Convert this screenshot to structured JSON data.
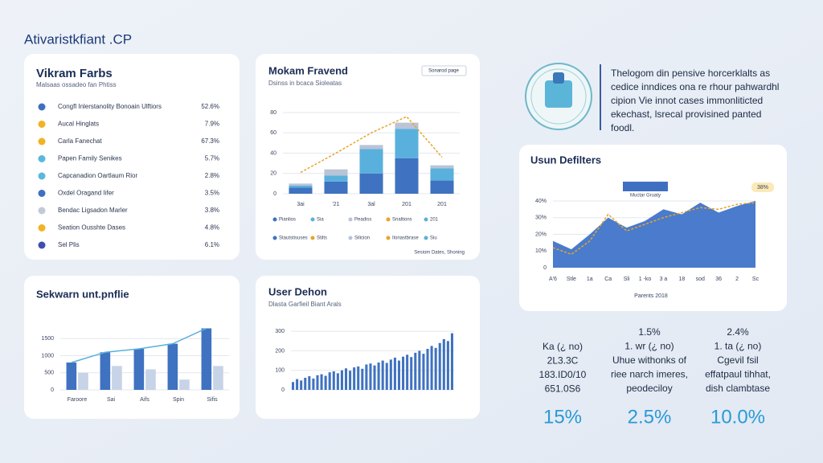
{
  "page_title": "Ativaristkfiant .CP",
  "list_panel": {
    "title": "Vikram Farbs",
    "subtitle": "Malsaas ossadeo fan Phtiss",
    "rows": [
      {
        "label": "Congfl Inlerstanolity Bonoain Ulftiors",
        "value": "52.6%",
        "color": "#3f6fc0"
      },
      {
        "label": "Aucal Hinglats",
        "value": "7.9%",
        "color": "#f0b323"
      },
      {
        "label": "Carla Fanechat",
        "value": "67.3%",
        "color": "#f0b323"
      },
      {
        "label": "Papen Family Senikes",
        "value": "5.7%",
        "color": "#5ab8dc"
      },
      {
        "label": "Capcanadion Oartlaum Rior",
        "value": "2.8%",
        "color": "#5ab8dc"
      },
      {
        "label": "Oxdel Oragand Iifer",
        "value": "3.5%",
        "color": "#3f6fc0"
      },
      {
        "label": "Bendac Ligsadon Marler",
        "value": "3.8%",
        "color": "#c2cad8"
      },
      {
        "label": "Seation Ousshte Dases",
        "value": "4.8%",
        "color": "#f0b323"
      },
      {
        "label": "Sel Plis",
        "value": "6.1%",
        "color": "#3f4fb0"
      }
    ]
  },
  "chart_data": [
    {
      "type": "stacked_bar_line",
      "title": "Mokam Fravend",
      "subtitle": "Dsinss in bcaca Sioleatas",
      "button": "Sonarod paqe",
      "categories": [
        "3ai",
        "'21",
        "3al",
        "201",
        "201"
      ],
      "ylim": [
        0,
        80
      ],
      "yticks": [
        0,
        20,
        40,
        60,
        80
      ],
      "series": [
        {
          "name": "Pianlios",
          "color": "#3f72c0",
          "values": [
            6,
            12,
            20,
            35,
            13
          ]
        },
        {
          "name": "Sia",
          "color": "#5ab0dc",
          "values": [
            2,
            6,
            24,
            29,
            12
          ]
        },
        {
          "name": "Peadiss",
          "color": "#b9c4d6",
          "values": [
            2,
            6,
            4,
            6,
            3
          ]
        },
        {
          "name": "Snaltions",
          "color": "#e6a52a",
          "kind": "line",
          "values": [
            21,
            40,
            60,
            76,
            36
          ]
        }
      ],
      "more_legend": [
        {
          "label": "201",
          "color": "#5ab0dc"
        },
        {
          "label": "Stautstisuses",
          "color": "#3f72c0"
        },
        {
          "label": "Stilts",
          "color": "#e6a52a"
        },
        {
          "label": "Silicion",
          "color": "#b9c4d6"
        },
        {
          "label": "Ilonastbrase",
          "color": "#e6a52a"
        },
        {
          "label": "Siu",
          "color": "#5ab0dc"
        }
      ],
      "footer": "Sesiom Dates, Shoning"
    },
    {
      "type": "bar_line",
      "title": "Sekwarn unt.pnflie",
      "categories": [
        "Faroore",
        "Sai",
        "Aifs",
        "Spin",
        "Sifis"
      ],
      "ylim": [
        0,
        2000
      ],
      "yticks": [
        0,
        500,
        1000,
        1500
      ],
      "line_color": "#5ab0dc",
      "series": [
        {
          "color": "#3f72c0",
          "values": [
            800,
            1100,
            1200,
            1350,
            1800
          ]
        },
        {
          "color": "#c7d3e6",
          "values": [
            500,
            700,
            600,
            300,
            700
          ]
        }
      ]
    },
    {
      "type": "bar",
      "title": "User Dehon",
      "subtitle": "Dlasta Garfieil Biant Arals",
      "ylim": [
        0,
        350
      ],
      "yticks": [
        0,
        100,
        200,
        300
      ],
      "color": "#3f72c0",
      "values": [
        40,
        55,
        48,
        62,
        70,
        58,
        75,
        80,
        72,
        90,
        95,
        85,
        100,
        110,
        98,
        115,
        120,
        108,
        130,
        135,
        125,
        140,
        150,
        138,
        155,
        165,
        150,
        170,
        180,
        168,
        190,
        200,
        185,
        210,
        225,
        215,
        240,
        260,
        250,
        290
      ]
    },
    {
      "type": "area",
      "title": "Usun Defilters",
      "badge": "Muctar Gruaty",
      "annotation": "38%",
      "footer": "Parents 2018",
      "categories": [
        "A'6",
        "Stle",
        "1a",
        "Ca",
        "Sli",
        "1 -ko",
        "3 a",
        "18",
        "sod",
        "36",
        "2",
        "Sc"
      ],
      "ylim": [
        0,
        40
      ],
      "yticks": [
        0,
        {
          "value": 10,
          "label": "10%"
        },
        {
          "value": 20,
          "label": "20%"
        },
        {
          "value": 30,
          "label": "30%"
        },
        {
          "value": 40,
          "label": "40%"
        }
      ],
      "series": [
        {
          "color": "#4a7bcc",
          "kind": "area",
          "values": [
            16,
            11,
            20,
            30,
            24,
            28,
            35,
            32,
            39,
            33,
            37,
            40
          ]
        },
        {
          "color": "#e6a52a",
          "kind": "line",
          "values": [
            12,
            8,
            16,
            32,
            22,
            26,
            30,
            33,
            36,
            35,
            38,
            39
          ]
        }
      ]
    }
  ],
  "info": {
    "lines": [
      "Thelogom din pensive horcerklalts as",
      "cedice inndices ona re rhour pahwardhl",
      "cipion Vie innot cases immonliticted",
      "ekechast, lsrecal provisined panted",
      "foodl."
    ]
  },
  "stats": [
    {
      "lines": [
        "Ka (¿ no)",
        "2L3.3C",
        "183.ID0/10",
        "651.0S6"
      ],
      "big": "15%"
    },
    {
      "lines": [
        "1.5%",
        "1. wr (¿ no)",
        "Uhue withonks of",
        "riee narch imeres,",
        "peodeciloy"
      ],
      "big": "2.5%"
    },
    {
      "lines": [
        "2.4%",
        "1. ta (¿ no)",
        "Cgevil fsil",
        "effatpaul tihhat,",
        "dish clambtase"
      ],
      "big": "10.0%"
    }
  ]
}
